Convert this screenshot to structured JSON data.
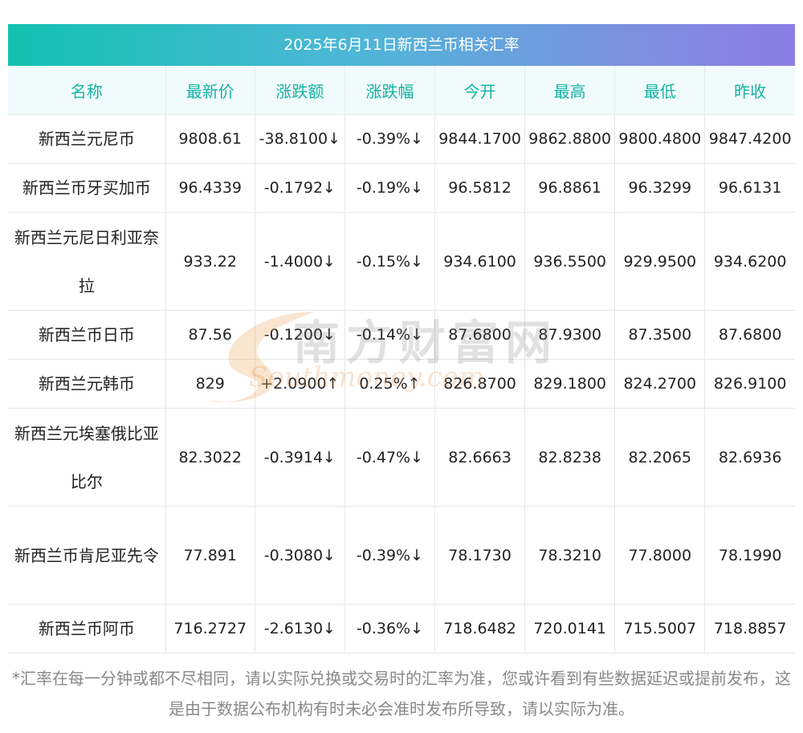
{
  "title": "2025年6月11日新西兰币相关汇率",
  "columns": [
    "名称",
    "最新价",
    "涨跌额",
    "涨跌幅",
    "今开",
    "最高",
    "最低",
    "昨收"
  ],
  "rows": [
    {
      "name": "新西兰元尼币",
      "latest": "9808.61",
      "change": "-38.8100↓",
      "pct": "-0.39%↓",
      "open": "9844.1700",
      "high": "9862.8800",
      "low": "9800.4800",
      "prev": "9847.4200",
      "dir": "down"
    },
    {
      "name": "新西兰币牙买加币",
      "latest": "96.4339",
      "change": "-0.1792↓",
      "pct": "-0.19%↓",
      "open": "96.5812",
      "high": "96.8861",
      "low": "96.3299",
      "prev": "96.6131",
      "dir": "down"
    },
    {
      "name": "新西兰元尼日利亚奈拉",
      "latest": "933.22",
      "change": "-1.4000↓",
      "pct": "-0.15%↓",
      "open": "934.6100",
      "high": "936.5500",
      "low": "929.9500",
      "prev": "934.6200",
      "dir": "down"
    },
    {
      "name": "新西兰币日币",
      "latest": "87.56",
      "change": "-0.1200↓",
      "pct": "-0.14%↓",
      "open": "87.6800",
      "high": "87.9300",
      "low": "87.3500",
      "prev": "87.6800",
      "dir": "down"
    },
    {
      "name": "新西兰元韩币",
      "latest": "829",
      "change": "+2.0900↑",
      "pct": "0.25%↑",
      "open": "826.8700",
      "high": "829.1800",
      "low": "824.2700",
      "prev": "826.9100",
      "dir": "up"
    },
    {
      "name": "新西兰元埃塞俄比亚比尔",
      "latest": "82.3022",
      "change": "-0.3914↓",
      "pct": "-0.47%↓",
      "open": "82.6663",
      "high": "82.8238",
      "low": "82.2065",
      "prev": "82.6936",
      "dir": "down"
    },
    {
      "name": "新西兰币肯尼亚先令",
      "latest": "77.891",
      "change": "-0.3080↓",
      "pct": "-0.39%↓",
      "open": "78.1730",
      "high": "78.3210",
      "low": "77.8000",
      "prev": "78.1990",
      "dir": "down"
    },
    {
      "name": "新西兰币阿币",
      "latest": "716.2727",
      "change": "-2.6130↓",
      "pct": "-0.36%↓",
      "open": "718.6482",
      "high": "720.0141",
      "low": "715.5007",
      "prev": "718.8857",
      "dir": "down"
    }
  ],
  "watermark": {
    "cn": "南方财富网",
    "en": "Southmoney.com"
  },
  "footnote": "*汇率在每一分钟或都不尽相同，请以实际兑换或交易时的汇率为准，您或许看到有些数据延迟或提前发布，这是由于数据公布机构有时未必会准时发布所导致，请以实际为准。",
  "colors": {
    "up": "#ee1c1c",
    "down": "#1b8a1b",
    "header_text": "#13b3a6",
    "title_gradient_start": "#13c2b0",
    "title_gradient_end": "#8c7de3"
  }
}
